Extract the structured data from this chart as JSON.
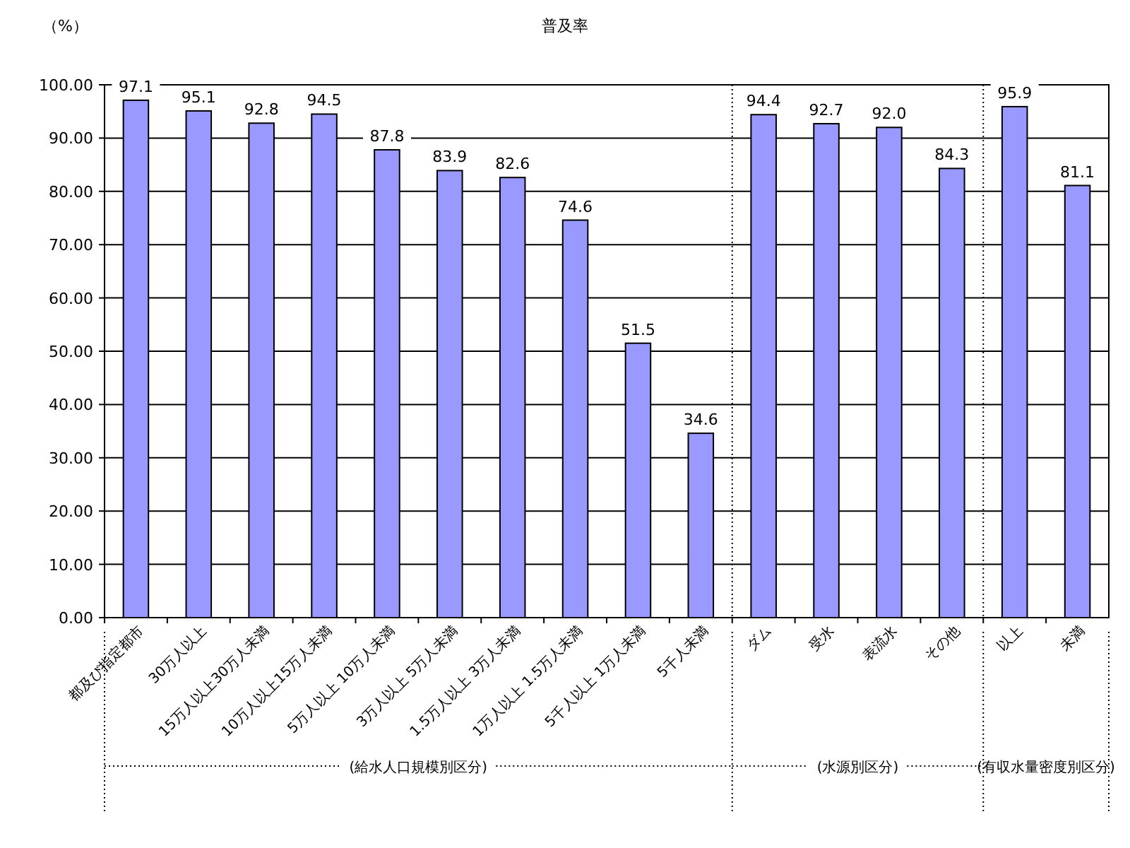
{
  "chart_data": {
    "type": "bar",
    "title": "普及率",
    "ylabel": "（%）",
    "categories": [
      "都及び指定都市",
      "30万人以上",
      "15万人以上30万人未満",
      "10万人以上15万人未満",
      "5万人以上 10万人未満",
      "3万人以上 5万人未満",
      "1.5万人以上 3万人未満",
      "1万人以上 1.5万人未満",
      "5千人以上 1万人未満",
      "5千人未満",
      "ダム",
      "受水",
      "表流水",
      "その他",
      "以上",
      "未満"
    ],
    "values": [
      97.1,
      95.1,
      92.8,
      94.5,
      87.8,
      83.9,
      82.6,
      74.6,
      51.5,
      34.6,
      94.4,
      92.7,
      92.0,
      84.3,
      95.9,
      81.1
    ],
    "value_labels": [
      "97.1",
      "95.1",
      "92.8",
      "94.5",
      "87.8",
      "83.9",
      "82.6",
      "74.6",
      "51.5",
      "34.6",
      "94.4",
      "92.7",
      "92.0",
      "84.3",
      "95.9",
      "81.1"
    ],
    "color": "#9999ff",
    "ylim": [
      0,
      100
    ],
    "yticks": [
      {
        "value": 0,
        "label": "0.00"
      },
      {
        "value": 10,
        "label": "10.00"
      },
      {
        "value": 20,
        "label": "20.00"
      },
      {
        "value": 30,
        "label": "30.00"
      },
      {
        "value": 40,
        "label": "40.00"
      },
      {
        "value": 50,
        "label": "50.00"
      },
      {
        "value": 60,
        "label": "60.00"
      },
      {
        "value": 70,
        "label": "70.00"
      },
      {
        "value": 80,
        "label": "80.00"
      },
      {
        "value": 90,
        "label": "90.00"
      },
      {
        "value": 100,
        "label": "100.00"
      }
    ],
    "grid": "y",
    "annotations": [
      "(給水人口規模別区分)",
      "(水源別区分)",
      "(有収水量密度別区分)"
    ]
  }
}
